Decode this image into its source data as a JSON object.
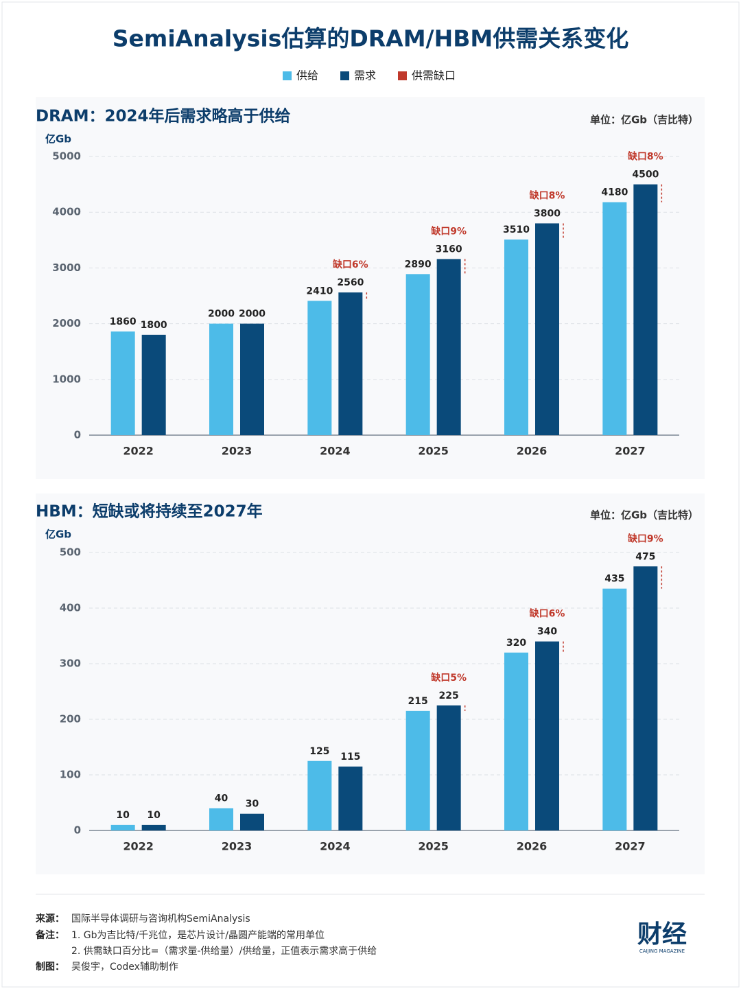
{
  "title": "SemiAnalysis估算的DRAM/HBM供需关系变化",
  "chart_data": [
    {
      "type": "bar",
      "title": "DRAM：2024年后需求略高于供给",
      "unit": "单位：亿Gb（吉比特）",
      "y_label": "亿Gb",
      "categories": [
        "2022",
        "2023",
        "2024",
        "2025",
        "2026",
        "2027"
      ],
      "series": [
        {
          "name": "供给",
          "color": "#4dbbe8",
          "values": [
            1860,
            2000,
            2410,
            2890,
            3510,
            4180
          ]
        },
        {
          "name": "需求",
          "color": "#0a4a7a",
          "values": [
            1800,
            2000,
            2560,
            3160,
            3800,
            4500
          ]
        }
      ],
      "gap": {
        "name": "供需缺口",
        "color": "#c0392b",
        "values": [
          null,
          null,
          6,
          9,
          8,
          8
        ],
        "value_labels": [
          null,
          null,
          "缺口6%",
          "缺口9%",
          "缺口8%",
          "缺口8%"
        ]
      },
      "ylim": [
        0,
        5000
      ],
      "yticks": [
        0,
        1000,
        2000,
        3000,
        4000,
        5000
      ],
      "grid": true
    },
    {
      "type": "bar",
      "title": "HBM：短缺或将持续至2027年",
      "unit": "单位：亿Gb（吉比特）",
      "y_label": "亿Gb",
      "categories": [
        "2022",
        "2023",
        "2024",
        "2025",
        "2026",
        "2027"
      ],
      "series": [
        {
          "name": "供给",
          "color": "#4dbbe8",
          "values": [
            10,
            40,
            125,
            215,
            320,
            435
          ]
        },
        {
          "name": "需求",
          "color": "#0a4a7a",
          "values": [
            10,
            30,
            115,
            225,
            340,
            475
          ]
        }
      ],
      "gap": {
        "name": "供需缺口",
        "color": "#c0392b",
        "values": [
          null,
          null,
          null,
          5,
          6,
          9
        ],
        "value_labels": [
          null,
          null,
          null,
          "缺口5%",
          "缺口6%",
          "缺口9%"
        ]
      },
      "ylim": [
        0,
        500
      ],
      "yticks": [
        0,
        100,
        200,
        300,
        400,
        500
      ],
      "grid": true
    }
  ],
  "footer": {
    "source_label": "来源：",
    "source": "国际半导体调研与咨询机构SemiAnalysis",
    "notes_label": "备注：",
    "notes": [
      "1. Gb为吉比特/千兆位，是芯片设计/晶圆产能端的常用单位",
      "2. 供需缺口百分比=（需求量-供给量）/供给量，正值表示需求高于供给"
    ],
    "credit_label": "制图：",
    "credit": "吴俊宇，Codex辅助制作",
    "logo": "财经",
    "logo_sub": "CAIJING MAGAZINE"
  }
}
